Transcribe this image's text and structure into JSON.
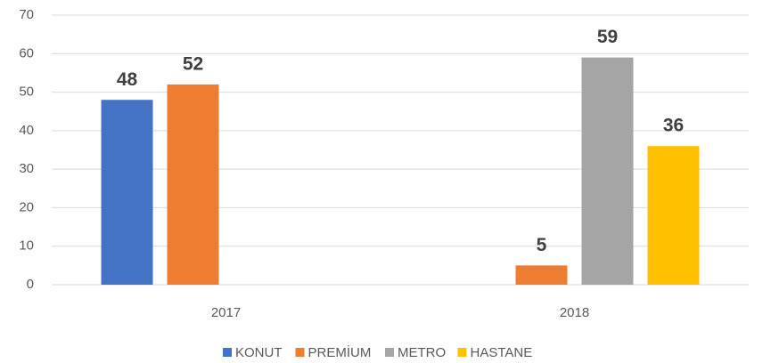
{
  "chart_data": {
    "type": "bar",
    "categories": [
      "2017",
      "2018"
    ],
    "series": [
      {
        "name": "KONUT",
        "color": "#4472c4",
        "values": [
          48,
          null
        ]
      },
      {
        "name": "PREMİUM",
        "color": "#ed7d31",
        "values": [
          52,
          5
        ]
      },
      {
        "name": "METRO",
        "color": "#a5a5a5",
        "values": [
          null,
          59
        ]
      },
      {
        "name": "HASTANE",
        "color": "#ffc000",
        "values": [
          null,
          36
        ]
      }
    ],
    "ylim": [
      0,
      70
    ],
    "yticks": [
      0,
      10,
      20,
      30,
      40,
      50,
      60,
      70
    ],
    "grid": true,
    "legend": "bottom"
  }
}
